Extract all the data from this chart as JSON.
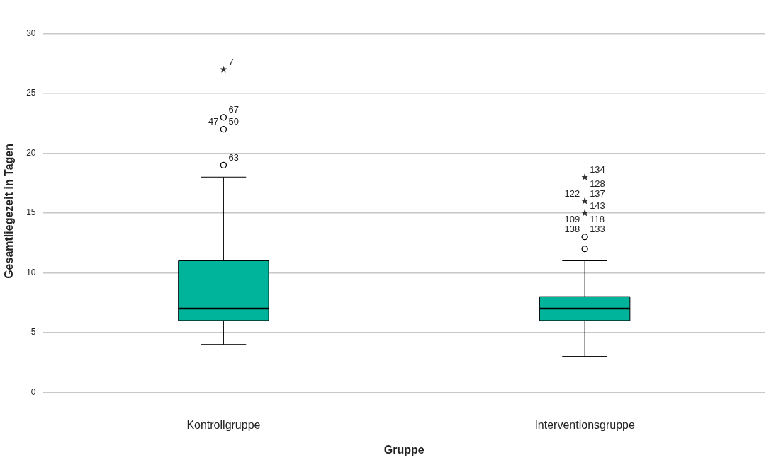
{
  "chart_data": {
    "type": "box",
    "xlabel": "Gruppe",
    "ylabel": "Gesamtliegezeit in Tagen",
    "categories": [
      "Kontrollgruppe",
      "Interventionsgruppe"
    ],
    "ylim": [
      -1.5,
      31.8
    ],
    "yticks": [
      0,
      5,
      10,
      15,
      20,
      25,
      30
    ],
    "grid": "y",
    "legend": false,
    "series": [
      {
        "color": "#00b39b",
        "boxes": [
          {
            "low": 4,
            "q1": 6,
            "median": 7,
            "q3": 11,
            "high": 18
          },
          {
            "low": 3,
            "q1": 6,
            "median": 7,
            "q3": 8,
            "high": 11
          }
        ]
      },
      {
        "type": "scatter",
        "marker": "circle",
        "color": "#000000",
        "x": [
          "Kontrollgruppe",
          "Kontrollgruppe",
          "Kontrollgruppe",
          "Interventionsgruppe",
          "Interventionsgruppe"
        ],
        "values": [
          23,
          22,
          19,
          13,
          12
        ]
      },
      {
        "type": "scatter",
        "marker": "star",
        "color": "#333333",
        "x": [
          "Kontrollgruppe",
          "Interventionsgruppe",
          "Interventionsgruppe",
          "Interventionsgruppe"
        ],
        "values": [
          27,
          18,
          16,
          15
        ]
      }
    ],
    "annotations": [
      {
        "text": "7",
        "x": "Kontrollgruppe",
        "y": 27
      },
      {
        "text": "67",
        "x": "Kontrollgruppe",
        "y": 23
      },
      {
        "text": "50",
        "x": "Kontrollgruppe",
        "y": 22
      },
      {
        "text": "47",
        "x": "Kontrollgruppe",
        "y": 22
      },
      {
        "text": "63",
        "x": "Kontrollgruppe",
        "y": 19
      },
      {
        "text": "134",
        "x": "Interventionsgruppe",
        "y": 18
      },
      {
        "text": "137",
        "x": "Interventionsgruppe",
        "y": 16
      },
      {
        "text": "122",
        "x": "Interventionsgruppe",
        "y": 16
      },
      {
        "text": "128",
        "x": "Interventionsgruppe",
        "y": 16
      },
      {
        "text": "143",
        "x": "Interventionsgruppe",
        "y": 15
      },
      {
        "text": "133",
        "x": "Interventionsgruppe",
        "y": 13
      },
      {
        "text": "138",
        "x": "Interventionsgruppe",
        "y": 13
      },
      {
        "text": "118",
        "x": "Interventionsgruppe",
        "y": 13
      },
      {
        "text": "109",
        "x": "Interventionsgruppe",
        "y": 13
      }
    ]
  }
}
